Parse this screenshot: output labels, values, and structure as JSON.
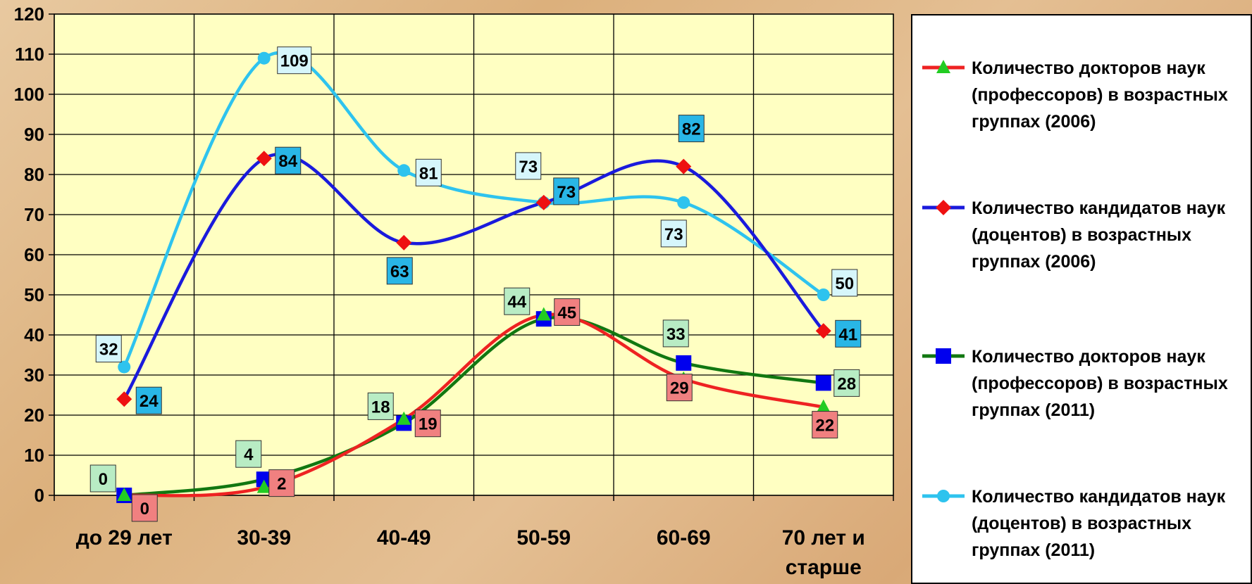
{
  "chart_data": {
    "type": "line",
    "categories": [
      "до 29 лет",
      "30-39",
      "40-49",
      "50-59",
      "60-69",
      "70 лет и старше"
    ],
    "ylim": [
      0,
      120
    ],
    "yticks": [
      "0",
      "10",
      "20",
      "30",
      "40",
      "50",
      "60",
      "70",
      "80",
      "90",
      "100",
      "110",
      "120"
    ],
    "legend_position": "right",
    "grid": true,
    "series": [
      {
        "name": "Количество докторов наук (профессоров) в возрастных группах (2006)",
        "values": [
          0,
          2,
          19,
          45,
          29,
          22
        ],
        "labels": [
          "0",
          "2",
          "19",
          "45",
          "29",
          "22"
        ],
        "color": "#ee2222",
        "marker": "triangle",
        "marker_color": "#22cc22",
        "label_bg": "#f08080"
      },
      {
        "name": "Количество кандидатов наук (доцентов) в возрастных группах (2006)",
        "values": [
          24,
          84,
          63,
          73,
          82,
          41
        ],
        "labels": [
          "24",
          "84",
          "63",
          "73",
          "82",
          "41"
        ],
        "color": "#1a1adc",
        "marker": "diamond",
        "marker_color": "#ee1111",
        "label_bg": "#29b6e6"
      },
      {
        "name": "Количество докторов наук (профессоров) в возрастных группах (2011)",
        "values": [
          0,
          4,
          18,
          44,
          33,
          28
        ],
        "labels": [
          "0",
          "4",
          "18",
          "44",
          "33",
          "28"
        ],
        "color": "#117711",
        "marker": "square",
        "marker_color": "#0000ee",
        "label_bg": "#b8ecc4"
      },
      {
        "name": "Количество кандидатов наук (доцентов) в возрастных группах (2011)",
        "values": [
          32,
          109,
          81,
          73,
          73,
          50
        ],
        "labels": [
          "32",
          "109",
          "81",
          "73",
          "73",
          "50"
        ],
        "color": "#2ec3ee",
        "marker": "circle",
        "marker_color": "#2ec3ee",
        "label_bg": "#d6f6fb"
      }
    ]
  },
  "colors": {
    "plot_bg": "#ffffc2",
    "grid": "#000000"
  }
}
